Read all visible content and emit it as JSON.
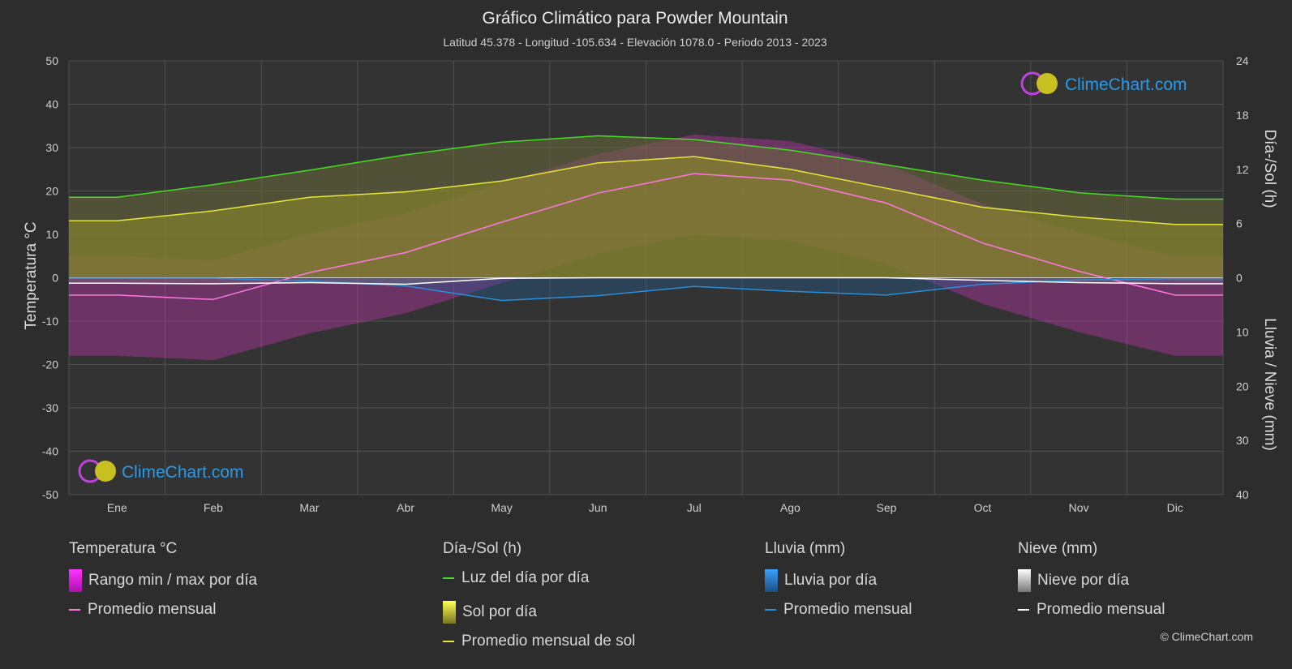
{
  "header": {
    "title": "Gráfico Climático para Powder Mountain",
    "subtitle": "Latitud 45.378 - Longitud -105.634 - Elevación 1078.0 - Periodo 2013 - 2023"
  },
  "axes": {
    "left_label": "Temperatura °C",
    "right_top_label": "Día-/Sol (h)",
    "right_bottom_label": "Lluvia / Nieve (mm)",
    "left_ticks": [
      "50",
      "40",
      "30",
      "20",
      "10",
      "0",
      "-10",
      "-20",
      "-30",
      "-40",
      "-50"
    ],
    "right_top_ticks": [
      "24",
      "18",
      "12",
      "6",
      "0"
    ],
    "right_bottom_ticks": [
      "10",
      "20",
      "30",
      "40"
    ]
  },
  "logo": {
    "text": "ClimeChart.com"
  },
  "copyright": "© ClimeChart.com",
  "legend": {
    "temp": {
      "title": "Temperatura °C",
      "range": "Rango min / max por día",
      "avg": "Promedio mensual"
    },
    "sun": {
      "title": "Día-/Sol (h)",
      "daylight": "Luz del día por día",
      "sun": "Sol por día",
      "avg": "Promedio mensual de sol"
    },
    "rain": {
      "title": "Lluvia (mm)",
      "daily": "Lluvia por día",
      "avg": "Promedio mensual"
    },
    "snow": {
      "title": "Nieve (mm)",
      "daily": "Nieve por día",
      "avg": "Promedio mensual"
    }
  },
  "colors": {
    "daylight": "#44dd22",
    "sun_line": "#e6e63a",
    "temp_avg": "#ff77e0",
    "rain_avg": "#2a8fd8",
    "snow_avg": "#ffffff",
    "temp_range": "#d633c4",
    "sun_fill": "#8a8a2a"
  },
  "chart_data": {
    "type": "line",
    "categories": [
      "Ene",
      "Feb",
      "Mar",
      "Abr",
      "May",
      "Jun",
      "Jul",
      "Ago",
      "Sep",
      "Oct",
      "Nov",
      "Dic"
    ],
    "temp_ylim": [
      -50,
      50
    ],
    "sun_ylim": [
      0,
      24
    ],
    "precip_ylim": [
      0,
      40
    ],
    "series": [
      {
        "name": "Luz del día por día",
        "axis": "sun",
        "values": [
          8.9,
          10.3,
          11.9,
          13.6,
          15.0,
          15.7,
          15.3,
          14.1,
          12.5,
          10.8,
          9.4,
          8.7
        ]
      },
      {
        "name": "Promedio mensual de sol",
        "axis": "sun",
        "values": [
          6.3,
          7.4,
          8.9,
          9.5,
          10.7,
          12.7,
          13.4,
          12.0,
          9.9,
          7.8,
          6.7,
          5.9
        ]
      },
      {
        "name": "Promedio mensual",
        "axis": "temp",
        "values": [
          -4.0,
          -5.0,
          1.2,
          5.8,
          12.8,
          19.5,
          24.0,
          22.5,
          17.2,
          8.0,
          1.5,
          -4.0
        ]
      },
      {
        "name": "Lluvia por día (promedio mensual)",
        "axis": "precip",
        "values": [
          0.1,
          0.1,
          0.6,
          1.5,
          4.2,
          3.3,
          1.6,
          2.5,
          3.2,
          1.2,
          0.4,
          0.2
        ]
      },
      {
        "name": "Nieve por día (promedio mensual)",
        "axis": "precip",
        "values": [
          1.0,
          1.1,
          0.9,
          1.2,
          0.1,
          0.0,
          0.0,
          0.0,
          0.0,
          0.5,
          0.9,
          1.1
        ]
      }
    ]
  }
}
